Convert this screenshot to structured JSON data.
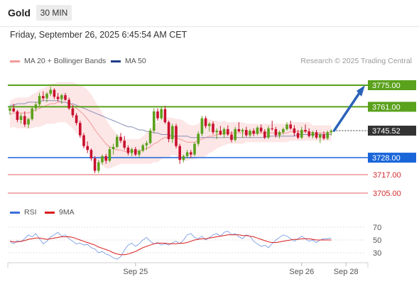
{
  "header": {
    "instrument": "Gold",
    "timeframe": "30 MIN"
  },
  "datetime": "Friday, September 26, 2025 6:45:54 AM CET",
  "legend": {
    "bollinger": "MA 20 + Bollinger Bands",
    "ma50": "MA 50"
  },
  "research_credit": "Research © 2025 Trading Central",
  "rsi_legend": {
    "rsi": "RSI",
    "ma9": "9MA"
  },
  "colors": {
    "bollinger": "#f19a9a",
    "ma50": "#1f3d8a",
    "green_level": "#5aa11c",
    "blue_level": "#1a66d9",
    "red_level": "#e06060",
    "price_tag": "#333333",
    "arrow": "#2a62b8",
    "candle_up": "#5aa11c",
    "candle_down": "#c8102e",
    "rsi": "#3a6fd8",
    "rsi_ma": "#d91c1c"
  },
  "chart_data": [
    {
      "type": "candlestick",
      "y_range": [
        3695,
        3785
      ],
      "levels": [
        {
          "label": "3775.00",
          "value": 3775.0,
          "kind": "resistance"
        },
        {
          "label": "3761.00",
          "value": 3761.0,
          "kind": "resistance"
        },
        {
          "label": "3745.52",
          "value": 3745.52,
          "kind": "last"
        },
        {
          "label": "3728.00",
          "value": 3728.0,
          "kind": "pivot"
        },
        {
          "label": "3717.00",
          "value": 3717.0,
          "kind": "support"
        },
        {
          "label": "3705.00",
          "value": 3705.0,
          "kind": "support"
        }
      ],
      "x_ticks": [
        "Sep 25",
        "Sep 26",
        "Sep 28"
      ],
      "x_tick_index": [
        34,
        79,
        91
      ],
      "candles": [
        [
          3758.5,
          3761.5,
          3756.0,
          3760.0
        ],
        [
          3760.0,
          3763.0,
          3757.5,
          3758.0
        ],
        [
          3758.0,
          3759.0,
          3751.0,
          3752.5
        ],
        [
          3752.5,
          3756.5,
          3750.0,
          3755.0
        ],
        [
          3755.0,
          3758.0,
          3748.0,
          3749.5
        ],
        [
          3749.5,
          3754.0,
          3747.0,
          3753.0
        ],
        [
          3753.0,
          3761.0,
          3752.0,
          3760.0
        ],
        [
          3760.0,
          3764.0,
          3758.0,
          3762.5
        ],
        [
          3762.5,
          3770.0,
          3761.0,
          3768.0
        ],
        [
          3768.0,
          3771.0,
          3765.0,
          3766.5
        ],
        [
          3766.5,
          3770.5,
          3764.0,
          3769.5
        ],
        [
          3769.5,
          3774.0,
          3768.0,
          3772.0
        ],
        [
          3772.0,
          3773.0,
          3766.0,
          3767.5
        ],
        [
          3767.5,
          3770.0,
          3764.5,
          3766.0
        ],
        [
          3766.0,
          3769.5,
          3763.0,
          3768.5
        ],
        [
          3768.5,
          3770.0,
          3765.0,
          3765.5
        ],
        [
          3765.5,
          3767.0,
          3759.0,
          3760.0
        ],
        [
          3760.0,
          3762.0,
          3754.0,
          3755.5
        ],
        [
          3755.5,
          3757.0,
          3749.0,
          3750.5
        ],
        [
          3750.5,
          3752.0,
          3741.0,
          3742.5
        ],
        [
          3742.5,
          3744.0,
          3734.0,
          3735.5
        ],
        [
          3735.5,
          3738.5,
          3731.0,
          3733.0
        ],
        [
          3733.0,
          3734.0,
          3726.0,
          3727.5
        ],
        [
          3727.5,
          3729.0,
          3718.0,
          3719.5
        ],
        [
          3719.5,
          3726.5,
          3718.0,
          3725.0
        ],
        [
          3725.0,
          3730.0,
          3723.5,
          3729.0
        ],
        [
          3729.0,
          3730.5,
          3724.0,
          3726.0
        ],
        [
          3726.0,
          3735.0,
          3725.0,
          3733.5
        ],
        [
          3733.5,
          3737.0,
          3730.0,
          3735.0
        ],
        [
          3735.0,
          3743.0,
          3734.0,
          3741.5
        ],
        [
          3741.5,
          3744.0,
          3737.5,
          3739.0
        ],
        [
          3739.0,
          3742.0,
          3733.0,
          3734.5
        ],
        [
          3734.5,
          3736.0,
          3729.5,
          3731.0
        ],
        [
          3731.0,
          3734.5,
          3729.0,
          3733.5
        ],
        [
          3733.5,
          3735.0,
          3729.0,
          3730.0
        ],
        [
          3730.0,
          3733.5,
          3728.0,
          3732.5
        ],
        [
          3732.5,
          3737.0,
          3731.5,
          3736.0
        ],
        [
          3736.0,
          3739.0,
          3733.0,
          3737.5
        ],
        [
          3737.5,
          3747.0,
          3736.5,
          3745.5
        ],
        [
          3745.5,
          3760.0,
          3744.0,
          3758.0
        ],
        [
          3758.0,
          3760.0,
          3752.0,
          3753.5
        ],
        [
          3753.5,
          3761.0,
          3752.5,
          3759.5
        ],
        [
          3759.5,
          3761.5,
          3750.0,
          3751.0
        ],
        [
          3751.0,
          3752.0,
          3738.0,
          3740.0
        ],
        [
          3740.0,
          3750.0,
          3737.5,
          3748.5
        ],
        [
          3748.5,
          3750.0,
          3734.0,
          3735.5
        ],
        [
          3735.5,
          3737.0,
          3724.0,
          3726.5
        ],
        [
          3726.5,
          3730.0,
          3725.0,
          3729.0
        ],
        [
          3729.0,
          3733.0,
          3727.5,
          3731.5
        ],
        [
          3731.5,
          3733.0,
          3728.0,
          3730.0
        ],
        [
          3730.0,
          3738.0,
          3729.0,
          3737.0
        ],
        [
          3737.0,
          3745.0,
          3735.5,
          3743.5
        ],
        [
          3743.5,
          3755.0,
          3742.0,
          3753.5
        ],
        [
          3753.5,
          3755.0,
          3747.0,
          3748.5
        ],
        [
          3748.5,
          3751.0,
          3745.0,
          3750.0
        ],
        [
          3750.0,
          3751.5,
          3743.0,
          3744.5
        ],
        [
          3744.5,
          3747.0,
          3740.0,
          3745.5
        ],
        [
          3745.5,
          3748.5,
          3742.5,
          3743.0
        ],
        [
          3743.0,
          3747.5,
          3741.0,
          3746.5
        ],
        [
          3746.5,
          3749.0,
          3742.0,
          3743.0
        ],
        [
          3743.0,
          3745.0,
          3738.0,
          3739.5
        ],
        [
          3739.5,
          3748.0,
          3738.5,
          3746.5
        ],
        [
          3746.5,
          3751.0,
          3744.5,
          3745.0
        ],
        [
          3745.0,
          3747.0,
          3741.0,
          3746.0
        ],
        [
          3746.0,
          3748.0,
          3741.5,
          3742.5
        ],
        [
          3742.5,
          3746.5,
          3741.0,
          3745.5
        ],
        [
          3745.5,
          3747.0,
          3742.0,
          3743.5
        ],
        [
          3743.5,
          3748.5,
          3742.5,
          3747.5
        ],
        [
          3747.5,
          3749.5,
          3744.0,
          3745.0
        ],
        [
          3745.0,
          3746.5,
          3740.0,
          3741.0
        ],
        [
          3741.0,
          3748.5,
          3740.0,
          3747.0
        ],
        [
          3747.0,
          3752.0,
          3745.5,
          3746.5
        ],
        [
          3746.5,
          3748.0,
          3741.0,
          3742.5
        ],
        [
          3742.5,
          3745.5,
          3740.5,
          3744.5
        ],
        [
          3744.5,
          3747.5,
          3743.0,
          3746.5
        ],
        [
          3746.5,
          3751.0,
          3745.5,
          3749.5
        ],
        [
          3749.5,
          3752.0,
          3746.0,
          3747.0
        ],
        [
          3747.0,
          3749.0,
          3742.0,
          3744.0
        ],
        [
          3744.0,
          3746.0,
          3740.0,
          3741.0
        ],
        [
          3741.0,
          3748.0,
          3740.0,
          3746.0
        ],
        [
          3746.0,
          3749.5,
          3744.0,
          3745.0
        ],
        [
          3745.0,
          3747.0,
          3741.0,
          3742.0
        ],
        [
          3742.0,
          3745.5,
          3740.5,
          3744.5
        ],
        [
          3744.5,
          3746.0,
          3740.0,
          3741.0
        ],
        [
          3741.0,
          3744.0,
          3737.5,
          3743.0
        ],
        [
          3743.0,
          3745.0,
          3739.5,
          3740.5
        ],
        [
          3740.5,
          3745.5,
          3739.5,
          3744.5
        ],
        [
          3744.5,
          3746.5,
          3742.5,
          3745.5
        ]
      ],
      "bollinger_mid": [
        3756,
        3757,
        3757,
        3757,
        3757,
        3757,
        3758,
        3759,
        3760,
        3761,
        3762,
        3763,
        3763,
        3764,
        3764,
        3764,
        3763,
        3762,
        3760,
        3758,
        3756,
        3753,
        3750,
        3746,
        3743,
        3740,
        3737,
        3735,
        3734,
        3733,
        3733,
        3732,
        3732,
        3732,
        3732,
        3732,
        3733,
        3734,
        3735,
        3737,
        3738,
        3740,
        3741,
        3741,
        3742,
        3741,
        3740,
        3739,
        3738,
        3738,
        3738,
        3739,
        3740,
        3741,
        3742,
        3742,
        3743,
        3743,
        3744,
        3744,
        3744,
        3744,
        3744,
        3744,
        3744,
        3744,
        3744,
        3744,
        3744,
        3744,
        3744,
        3744,
        3744,
        3744,
        3744,
        3744,
        3745,
        3745,
        3745,
        3745,
        3745,
        3745,
        3744,
        3744,
        3744,
        3744,
        3744,
        3744
      ],
      "bollinger_width": [
        9,
        9,
        10,
        10,
        10,
        10,
        11,
        11,
        12,
        12,
        12,
        13,
        13,
        13,
        13,
        13,
        14,
        15,
        16,
        17,
        18,
        19,
        19,
        19,
        18,
        17,
        16,
        14,
        12,
        10,
        9,
        8,
        8,
        8,
        8,
        8,
        9,
        10,
        11,
        12,
        13,
        13,
        13,
        13,
        12,
        12,
        13,
        13,
        12,
        11,
        11,
        11,
        12,
        12,
        11,
        10,
        9,
        8,
        8,
        7,
        7,
        7,
        7,
        7,
        6,
        6,
        6,
        6,
        6,
        6,
        6,
        6,
        6,
        6,
        6,
        6,
        6,
        6,
        6,
        6,
        6,
        6,
        5,
        5,
        5,
        5,
        5,
        5
      ],
      "ma50": [
        3762,
        3762,
        3763,
        3763,
        3763,
        3764,
        3764,
        3764,
        3764,
        3765,
        3765,
        3765,
        3765,
        3765,
        3764,
        3764,
        3763,
        3763,
        3762,
        3761,
        3760,
        3759,
        3758,
        3757,
        3756,
        3755,
        3754,
        3753,
        3752,
        3751,
        3750,
        3749,
        3748,
        3748,
        3747,
        3746,
        3746,
        3745,
        3745,
        3744,
        3744,
        3743,
        3743,
        3743,
        3742,
        3742,
        3742,
        3742,
        3742,
        3741,
        3741,
        3741,
        3741,
        3741,
        3741,
        3741,
        3741,
        3741,
        3741,
        3741,
        3741,
        3741,
        3741,
        3741,
        3741,
        3741,
        3741,
        3741,
        3741,
        3741,
        3742,
        3742,
        3742,
        3742,
        3742,
        3742,
        3742,
        3742,
        3743,
        3743,
        3743,
        3743,
        3743,
        3743,
        3743,
        3743,
        3743,
        3743
      ],
      "forecast_target": 3775.0
    },
    {
      "type": "line",
      "series": [
        {
          "name": "RSI",
          "values": [
            48,
            44,
            49,
            47,
            52,
            58,
            55,
            60,
            52,
            44,
            48,
            55,
            58,
            62,
            56,
            58,
            52,
            48,
            44,
            45,
            42,
            43,
            38,
            36,
            30,
            32,
            28,
            26,
            22,
            20,
            24,
            34,
            42,
            45,
            40,
            44,
            50,
            54,
            48,
            44,
            46,
            42,
            44,
            42,
            46,
            48,
            44,
            50,
            58,
            60,
            54,
            52,
            56,
            50,
            54,
            58,
            60,
            56,
            62,
            64,
            58,
            60,
            55,
            52,
            58,
            56,
            48,
            44,
            40,
            42,
            38,
            44,
            50,
            54,
            58,
            56,
            52,
            48,
            52,
            56,
            52,
            48,
            50,
            46,
            50,
            52,
            52,
            53
          ]
        },
        {
          "name": "9MA",
          "values": [
            48,
            47,
            47,
            48,
            49,
            51,
            52,
            53,
            53,
            52,
            51,
            52,
            53,
            54,
            55,
            55,
            55,
            54,
            52,
            50,
            48,
            46,
            44,
            42,
            39,
            37,
            35,
            33,
            30,
            28,
            27,
            27,
            28,
            30,
            32,
            35,
            38,
            40,
            42,
            44,
            45,
            45,
            45,
            44,
            44,
            44,
            45,
            45,
            46,
            48,
            50,
            51,
            52,
            52,
            53,
            54,
            55,
            56,
            57,
            58,
            58,
            58,
            58,
            57,
            57,
            56,
            55,
            53,
            51,
            49,
            47,
            46,
            46,
            47,
            48,
            49,
            50,
            51,
            51,
            52,
            52,
            52,
            51,
            50,
            50,
            50,
            50,
            50
          ]
        }
      ],
      "y_ticks": [
        "70",
        "50",
        "30"
      ],
      "ylim": [
        10,
        85
      ]
    }
  ]
}
